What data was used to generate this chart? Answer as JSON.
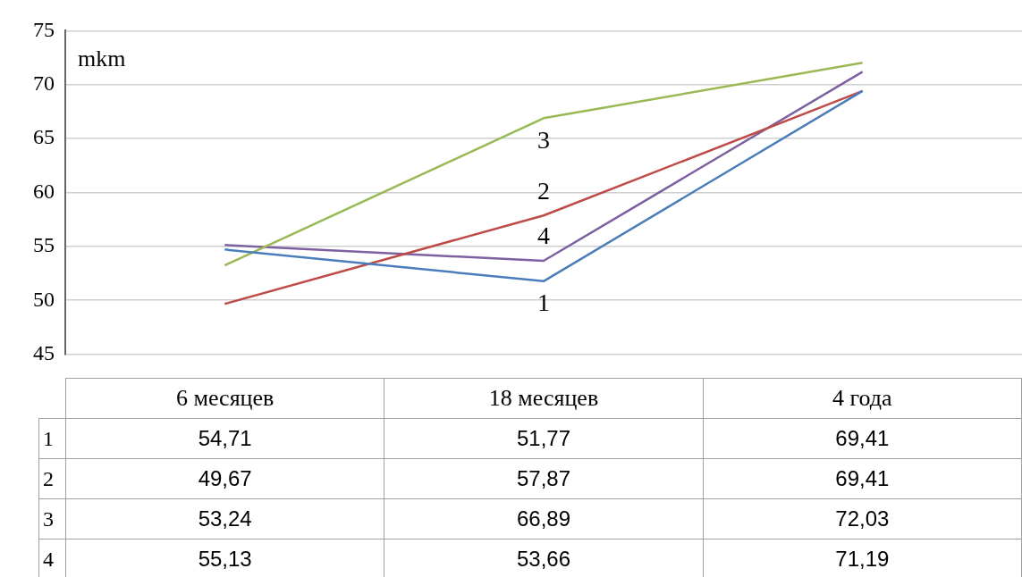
{
  "chart_data": {
    "type": "line",
    "ylabel": "mkm",
    "categories": [
      "6 месяцев",
      "18 месяцев",
      "4 года"
    ],
    "ylim": [
      45,
      75
    ],
    "yticks": [
      45,
      50,
      55,
      60,
      65,
      70,
      75
    ],
    "grid": "y",
    "legend": false,
    "marker": "none",
    "series": [
      {
        "name": "1",
        "color": "#4a7ebb",
        "values": [
          54.71,
          51.77,
          69.41
        ],
        "value_labels": [
          "54,71",
          "51,77",
          "69,41"
        ]
      },
      {
        "name": "2",
        "color": "#be4b48",
        "values": [
          49.67,
          57.87,
          69.41
        ],
        "value_labels": [
          "49,67",
          "57,87",
          "69,41"
        ]
      },
      {
        "name": "3",
        "color": "#98b954",
        "values": [
          53.24,
          66.89,
          72.03
        ],
        "value_labels": [
          "53,24",
          "66,89",
          "72,03"
        ]
      },
      {
        "name": "4",
        "color": "#7d60a0",
        "values": [
          55.13,
          53.66,
          71.19
        ],
        "value_labels": [
          "55,13",
          "53,66",
          "71,19"
        ]
      }
    ]
  }
}
